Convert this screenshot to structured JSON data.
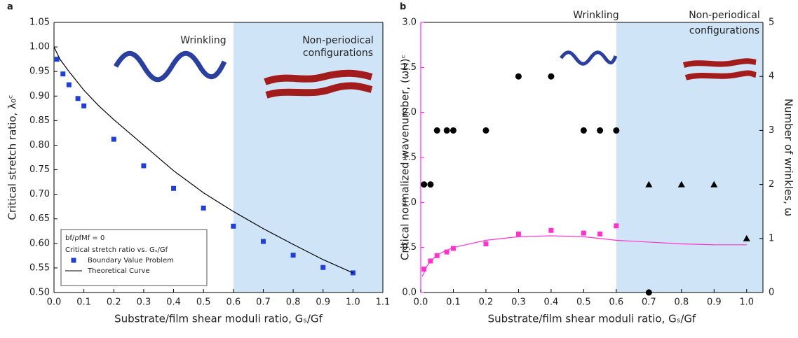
{
  "chart_data": [
    {
      "type": "scatter",
      "panel_label": "a",
      "x_label": "Substrate/film shear moduli ratio, Gₛ/Gf",
      "y_label": "Critical stretch ratio, λ₀ᶜ",
      "annotations": [
        "Wrinkling",
        "Non-periodical",
        "configurations"
      ],
      "xlim": [
        0,
        1.1
      ],
      "xticks": [
        {
          "value": 0,
          "label": "0.0"
        },
        0.1,
        0.2,
        0.3,
        0.4,
        0.5,
        0.6,
        0.7,
        0.8,
        0.9,
        {
          "value": 1,
          "label": "1.0"
        },
        1.1
      ],
      "ylim": [
        0.5,
        1.05
      ],
      "yticks": [
        {
          "value": 0.5,
          "label": "0.50"
        },
        0.55,
        {
          "value": 0.6,
          "label": "0.60"
        },
        0.65,
        {
          "value": 0.7,
          "label": "0.70"
        },
        0.75,
        {
          "value": 0.8,
          "label": "0.80"
        },
        0.85,
        {
          "value": 0.9,
          "label": "0.90"
        },
        0.95,
        {
          "value": 1,
          "label": "1.00"
        },
        1.05
      ],
      "shaded_region": [
        0.6,
        1.1
      ],
      "shade_color": "#cfe4f7",
      "legend": {
        "position": "lower left",
        "title": [
          "bf/ρfMf = 0",
          "Critical stretch ratio vs. Gₛ/Gf"
        ]
      },
      "series": [
        {
          "name": "Boundary Value Problem",
          "style": "marker",
          "marker": "square",
          "color": "#1f3fd6",
          "x": [
            0.01,
            0.03,
            0.05,
            0.08,
            0.1,
            0.2,
            0.3,
            0.4,
            0.5,
            0.6,
            0.7,
            0.8,
            0.9,
            1.0
          ],
          "values": [
            0.975,
            0.945,
            0.923,
            0.895,
            0.88,
            0.812,
            0.758,
            0.712,
            0.672,
            0.635,
            0.604,
            0.576,
            0.551,
            0.54
          ]
        },
        {
          "name": "Theoretical Curve",
          "style": "line",
          "color": "#000000",
          "x": [
            0,
            0.02,
            0.05,
            0.1,
            0.15,
            0.2,
            0.3,
            0.4,
            0.5,
            0.6,
            0.7,
            0.8,
            0.9,
            1.0
          ],
          "values": [
            1.0,
            0.975,
            0.95,
            0.912,
            0.88,
            0.852,
            0.8,
            0.748,
            0.703,
            0.665,
            0.63,
            0.598,
            0.567,
            0.54
          ]
        }
      ]
    },
    {
      "type": "scatter",
      "panel_label": "b",
      "x_label": "Substrate/film shear moduli ratio, Gₛ/Gf",
      "y_label": "Critical normalized wavenumber, (ωH)ᶜ",
      "y2_label": "Number of wrinkles, ω",
      "annotations": [
        "Wrinkling",
        "Non-periodical",
        "configurations"
      ],
      "y_axis_color": "#ff00ff",
      "xlim": [
        0,
        1.05
      ],
      "xticks": [
        {
          "value": 0,
          "label": "0.0"
        },
        0.1,
        0.2,
        0.3,
        0.4,
        0.5,
        0.6,
        0.7,
        0.8,
        0.9,
        {
          "value": 1,
          "label": "1.0"
        }
      ],
      "ylim": [
        0,
        3
      ],
      "yticks": [
        {
          "value": 0,
          "label": "0.0"
        },
        0.5,
        {
          "value": 1,
          "label": "1.0"
        },
        1.5,
        {
          "value": 2,
          "label": "2.0"
        },
        2.5,
        {
          "value": 3,
          "label": "3.0"
        }
      ],
      "y2lim": [
        0,
        5
      ],
      "y2ticks": [
        0,
        1,
        2,
        3,
        4,
        5
      ],
      "shaded_region": [
        0.6,
        1.05
      ],
      "shade_color": "#cfe4f7",
      "series": [
        {
          "style": "marker",
          "marker": "square",
          "color": "#ff33cc",
          "x": [
            0.01,
            0.03,
            0.05,
            0.08,
            0.1,
            0.2,
            0.3,
            0.4,
            0.5,
            0.55,
            0.6
          ],
          "values": [
            0.26,
            0.35,
            0.41,
            0.45,
            0.49,
            0.54,
            0.65,
            0.69,
            0.66,
            0.65,
            0.74
          ]
        },
        {
          "style": "line",
          "color": "#ff33cc",
          "x": [
            0.005,
            0.02,
            0.05,
            0.1,
            0.2,
            0.3,
            0.4,
            0.5,
            0.6,
            0.7,
            0.8,
            0.9,
            1.0
          ],
          "values": [
            0.18,
            0.3,
            0.42,
            0.5,
            0.58,
            0.62,
            0.63,
            0.62,
            0.58,
            0.56,
            0.54,
            0.53,
            0.53
          ]
        },
        {
          "style": "marker",
          "marker": "circle",
          "color": "#000000",
          "axis": "y2",
          "x": [
            0.01,
            0.03,
            0.05,
            0.08,
            0.1,
            0.2,
            0.3,
            0.4,
            0.5,
            0.55,
            0.6,
            0.7
          ],
          "values": [
            2,
            2,
            3,
            3,
            3,
            3,
            4,
            4,
            3,
            3,
            3,
            0
          ]
        },
        {
          "style": "marker",
          "marker": "triangle",
          "color": "#000000",
          "axis": "y2",
          "x": [
            0.7,
            0.8,
            0.9,
            1.0
          ],
          "values": [
            2,
            2,
            2,
            1
          ]
        }
      ]
    }
  ]
}
